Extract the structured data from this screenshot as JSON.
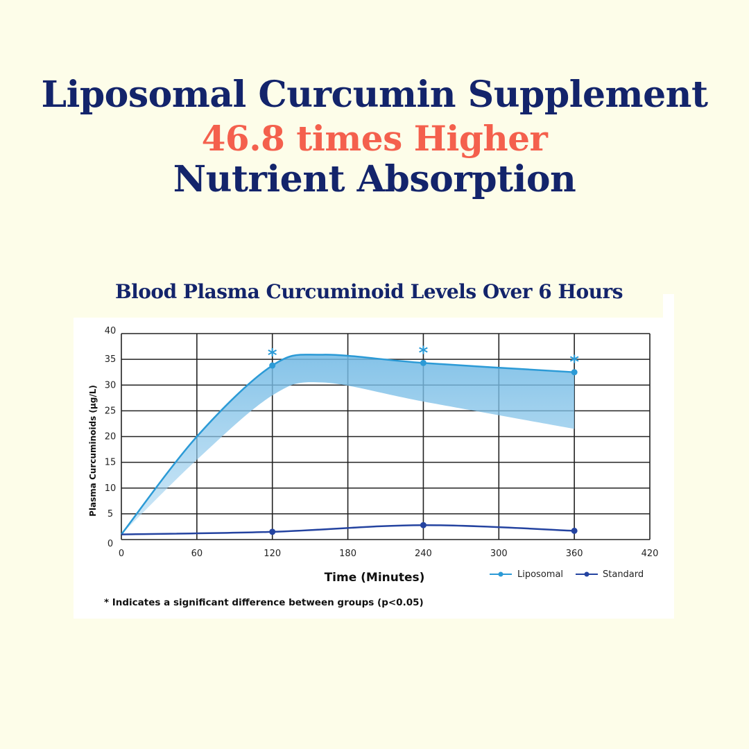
{
  "headline": {
    "line1": "Liposomal Curcumin Supplement",
    "line2": "46.8 times Higher",
    "line3": "Nutrient Absorption"
  },
  "colors": {
    "background": "#fdfde9",
    "navy": "#13246b",
    "coral": "#f4604d",
    "liposomal": "#2b9ad6",
    "band": "#8fc9ea",
    "standard": "#2443a0"
  },
  "chart_data": {
    "type": "line",
    "title": "Blood Plasma Curcuminoid Levels Over 6 Hours",
    "xlabel": "Time (Minutes)",
    "ylabel": "Plasma Curcuminoids (µg/L)",
    "xlim": [
      0,
      420
    ],
    "ylim": [
      0,
      40
    ],
    "xticks": [
      0,
      60,
      120,
      180,
      240,
      300,
      360,
      420
    ],
    "yticks": [
      0,
      5,
      10,
      15,
      20,
      25,
      30,
      35,
      40
    ],
    "grid": true,
    "legend_position": "bottom-right",
    "series": [
      {
        "name": "Liposomal",
        "x": [
          0,
          120,
          240,
          360
        ],
        "y": [
          1,
          33.8,
          34.3,
          32.5
        ],
        "markers": [
          120,
          240,
          360
        ],
        "significant": [
          120,
          240,
          360
        ],
        "band_upper": [
          [
            0,
            1
          ],
          [
            60,
            20
          ],
          [
            120,
            33.8
          ],
          [
            160,
            35.9
          ],
          [
            240,
            34.3
          ],
          [
            360,
            32.5
          ]
        ],
        "band_lower": [
          [
            0,
            1
          ],
          [
            60,
            15.5
          ],
          [
            120,
            28
          ],
          [
            160,
            30.5
          ],
          [
            240,
            26.8
          ],
          [
            360,
            21.5
          ]
        ]
      },
      {
        "name": "Standard",
        "x": [
          0,
          120,
          240,
          360
        ],
        "y": [
          1,
          1.5,
          2.8,
          1.7
        ],
        "markers": [
          120,
          240,
          360
        ]
      }
    ],
    "footnote": "* Indicates a significant difference between groups (p<0.05)"
  }
}
